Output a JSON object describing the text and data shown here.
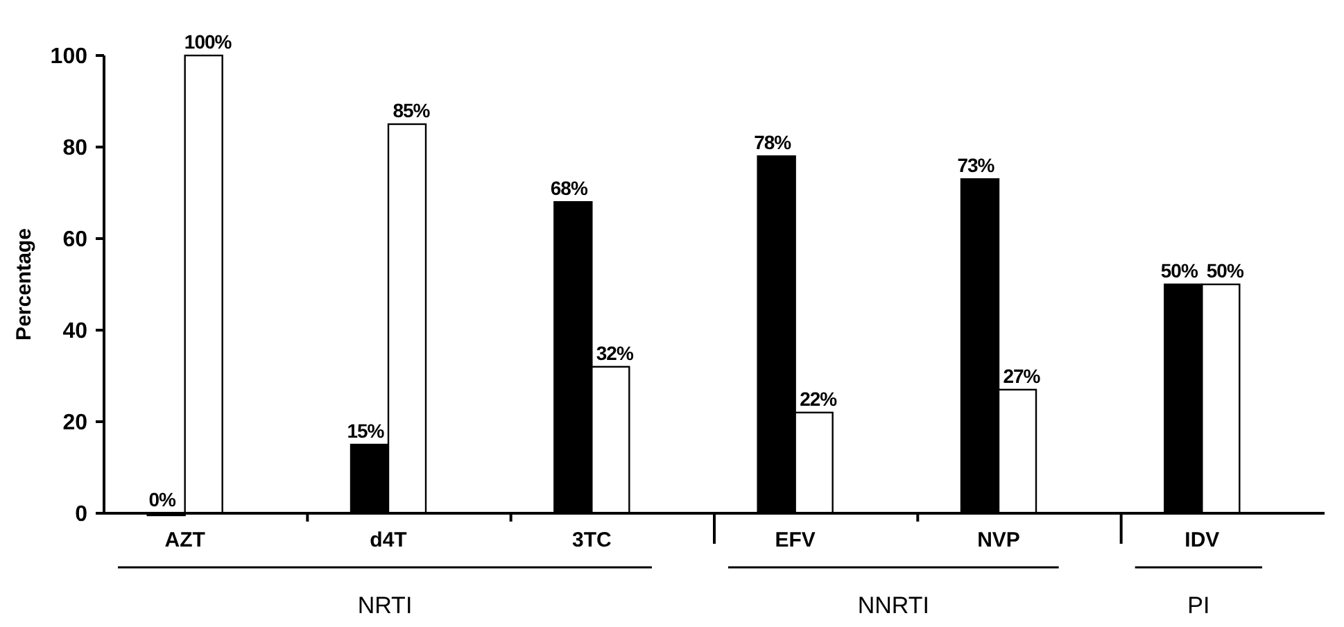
{
  "chart_data": {
    "type": "bar",
    "ylabel": "Percentage",
    "categories": [
      "AZT",
      "d4T",
      "3TC",
      "EFV",
      "NVP",
      "IDV"
    ],
    "series": [
      {
        "color": "#000000",
        "values": [
          0,
          15,
          68,
          78,
          73,
          50
        ],
        "value_labels": [
          "0%",
          "15%",
          "68%",
          "78%",
          "73%",
          "50%"
        ]
      },
      {
        "color": "#ffffff",
        "values": [
          100,
          85,
          32,
          22,
          27,
          50
        ],
        "value_labels": [
          "100%",
          "85%",
          "32%",
          "22%",
          "27%",
          "50%"
        ]
      }
    ],
    "ylim": [
      0,
      100
    ],
    "yticks": [
      0,
      20,
      40,
      60,
      80,
      100
    ],
    "annotations": [
      "NRTI",
      "NNRTI",
      "PI"
    ]
  }
}
